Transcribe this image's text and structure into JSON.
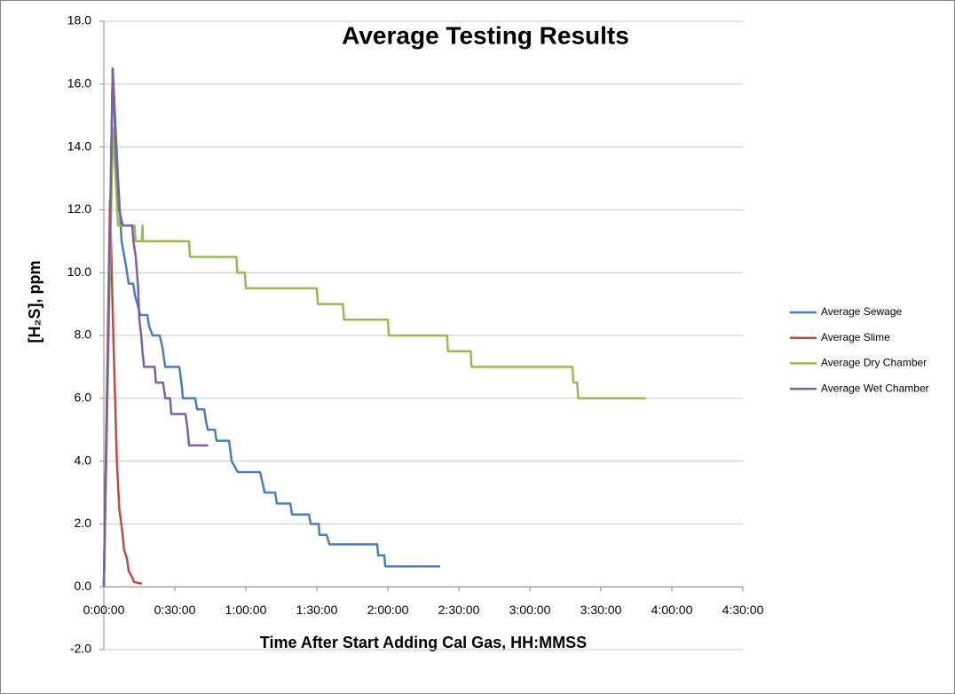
{
  "chart_data": {
    "type": "line",
    "title": "Average Testing Results",
    "x_label": "Time After Start Adding Cal Gas, HH:MMSS",
    "y_label": "[H₂S], ppm",
    "xlim": [
      0,
      270
    ],
    "xticks": [
      {
        "value": 0,
        "label": "0:00:00"
      },
      {
        "value": 30,
        "label": "0:30:00"
      },
      {
        "value": 60,
        "label": "1:00:00"
      },
      {
        "value": 90,
        "label": "1:30:00"
      },
      {
        "value": 120,
        "label": "2:00:00"
      },
      {
        "value": 150,
        "label": "2:30:00"
      },
      {
        "value": 180,
        "label": "3:00:00"
      },
      {
        "value": 210,
        "label": "3:30:00"
      },
      {
        "value": 240,
        "label": "4:00:00"
      },
      {
        "value": 270,
        "label": "4:30:00"
      }
    ],
    "ylim": [
      -2,
      18
    ],
    "yticks": [
      {
        "value": -2,
        "label": "-2.0"
      },
      {
        "value": 0,
        "label": "0.0"
      },
      {
        "value": 2,
        "label": "2.0"
      },
      {
        "value": 4,
        "label": "4.0"
      },
      {
        "value": 6,
        "label": "6.0"
      },
      {
        "value": 8,
        "label": "8.0"
      },
      {
        "value": 10,
        "label": "10.0"
      },
      {
        "value": 12,
        "label": "12.0"
      },
      {
        "value": 14,
        "label": "14.0"
      },
      {
        "value": 16,
        "label": "16.0"
      },
      {
        "value": 18,
        "label": "18.0"
      }
    ],
    "grid": true,
    "legend": "right",
    "series": [
      {
        "name": "Average Sewage",
        "color": "#4a7ebb",
        "x": [
          0,
          3.75,
          6,
          7.5,
          9.4,
          10.5,
          12.4,
          13.1,
          15.4,
          18.4,
          19.1,
          20.6,
          23.6,
          24.8,
          25.9,
          31.9,
          33,
          33.4,
          38.6,
          39.4,
          42.4,
          43.1,
          43.9,
          46.9,
          47.6,
          52.9,
          54,
          56.6,
          66,
          67.1,
          67.9,
          72.4,
          73.1,
          78.8,
          79.5,
          86.6,
          87.4,
          90.8,
          91.1,
          94.1,
          95.3,
          115.5,
          115.9,
          118.5,
          118.9,
          142.1
        ],
        "values": [
          0,
          16.5,
          13,
          11,
          10.2,
          9.65,
          9.65,
          9.3,
          8.65,
          8.65,
          8.3,
          8,
          8,
          7.6,
          7,
          7,
          6.35,
          6,
          6,
          5.65,
          5.65,
          5.3,
          5,
          5,
          4.65,
          4.65,
          4,
          3.65,
          3.65,
          3.3,
          3,
          3,
          2.65,
          2.65,
          2.3,
          2.3,
          2,
          2,
          1.65,
          1.65,
          1.35,
          1.35,
          1,
          1,
          0.65,
          0.65
        ]
      },
      {
        "name": "Average Slime",
        "color": "#be4b48",
        "x": [
          0,
          2.6,
          4,
          5.5,
          6.5,
          7.9,
          8.5,
          9.75,
          10.5,
          12,
          12.75,
          16.1
        ],
        "values": [
          0,
          12.3,
          8,
          4,
          2.5,
          1.7,
          1.2,
          0.9,
          0.5,
          0.3,
          0.15,
          0.1
        ]
      },
      {
        "name": "Average Dry Chamber",
        "color": "#98b954",
        "x": [
          0,
          3.75,
          5,
          6,
          13,
          13.4,
          16,
          16.4,
          16.5,
          36,
          36.4,
          56,
          56.4,
          59.6,
          60,
          90,
          90.4,
          101,
          101.5,
          120,
          120.4,
          145,
          145.4,
          155,
          155.4,
          198,
          198.4,
          200,
          200.4,
          229
        ],
        "values": [
          0,
          14.6,
          13,
          11.5,
          11.5,
          11,
          11,
          11.5,
          11,
          11,
          10.5,
          10.5,
          10,
          10,
          9.5,
          9.5,
          9,
          9,
          8.5,
          8.5,
          8,
          8,
          7.5,
          7.5,
          7,
          7,
          6.5,
          6.5,
          6,
          6
        ]
      },
      {
        "name": "Average Wet Chamber",
        "color": "#7d60a0",
        "x": [
          0,
          3.75,
          5,
          6.5,
          8,
          12,
          12.5,
          13.5,
          14.5,
          15,
          15.8,
          16.3,
          17,
          21.5,
          22,
          25,
          26,
          28,
          28.5,
          34.5,
          35.4,
          36,
          44
        ],
        "values": [
          0,
          16.5,
          14,
          12,
          11.5,
          11.5,
          11,
          10.5,
          9.5,
          8.5,
          8,
          7.5,
          7,
          7,
          6.5,
          6.5,
          6,
          6,
          5.5,
          5.5,
          5,
          4.5,
          4.5
        ]
      }
    ]
  }
}
